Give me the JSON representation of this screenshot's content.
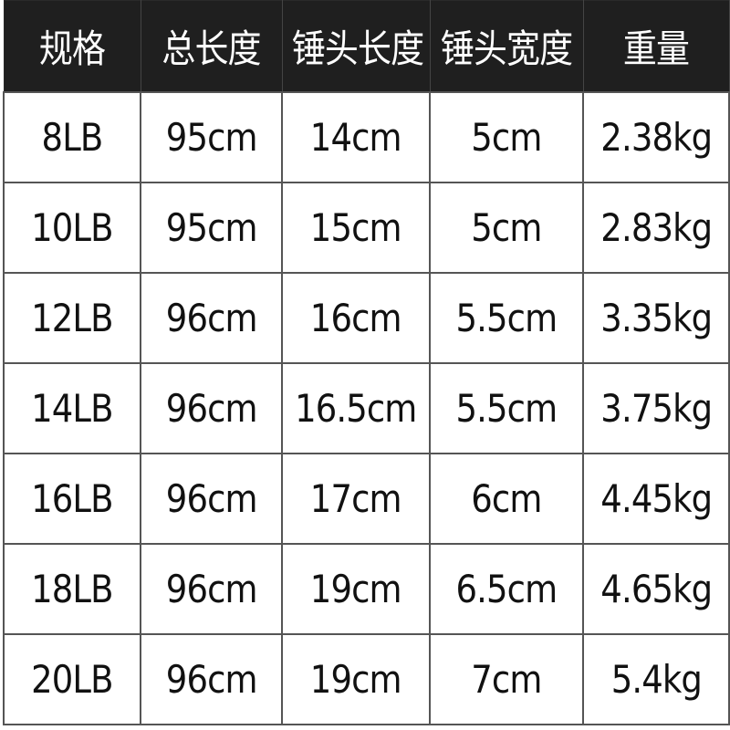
{
  "table": {
    "headers": [
      "规格",
      "总长度",
      "锤头长度",
      "锤头宽度",
      "重量"
    ],
    "rows": [
      [
        "8LB",
        "95cm",
        "14cm",
        "5cm",
        "2.38kg"
      ],
      [
        "10LB",
        "95cm",
        "15cm",
        "5cm",
        "2.83kg"
      ],
      [
        "12LB",
        "96cm",
        "16cm",
        "5.5cm",
        "3.35kg"
      ],
      [
        "14LB",
        "96cm",
        "16.5cm",
        "5.5cm",
        "3.75kg"
      ],
      [
        "16LB",
        "96cm",
        "17cm",
        "6cm",
        "4.45kg"
      ],
      [
        "18LB",
        "96cm",
        "19cm",
        "6.5cm",
        "4.65kg"
      ],
      [
        "20LB",
        "96cm",
        "19cm",
        "7cm",
        "5.4kg"
      ]
    ]
  },
  "colors": {
    "header_bg": "#1f1f1f",
    "header_text": "#ffffff",
    "border": "#555555"
  }
}
